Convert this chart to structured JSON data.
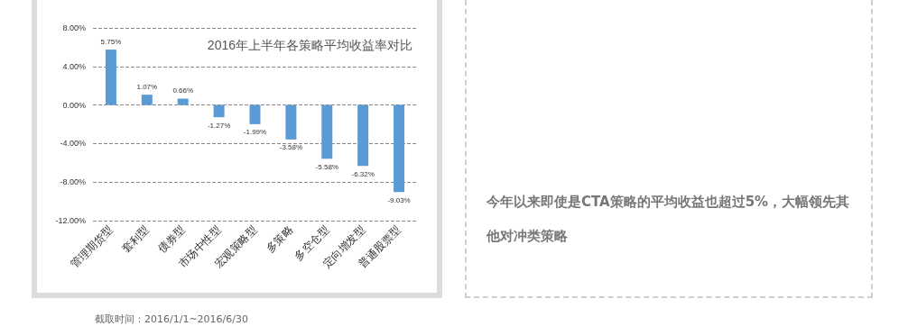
{
  "chart_data": {
    "type": "bar",
    "title": "2016年上半年各策略平均收益率对比",
    "categories": [
      "管理期货型",
      "套利型",
      "债券型",
      "市场中性型",
      "宏观策略型",
      "多策略",
      "多空仓型",
      "定向增发型",
      "普通股票型"
    ],
    "values": [
      5.75,
      1.07,
      0.66,
      -1.27,
      -1.99,
      -3.58,
      -5.58,
      -6.32,
      -9.03
    ],
    "value_labels": [
      "5.75%",
      "1.07%",
      "0.66%",
      "-1.27%",
      "-1.99%",
      "-3.58%",
      "-5.58%",
      "-6.32%",
      "-9.03%"
    ],
    "color": "#5b9bd5",
    "ylim": [
      -12,
      8
    ],
    "yticks": [
      {
        "value": -12,
        "label": "-12.00%"
      },
      {
        "value": -8,
        "label": "-8.00%"
      },
      {
        "value": -4,
        "label": "-4.00%"
      },
      {
        "value": 0,
        "label": "0.00%"
      },
      {
        "value": 4,
        "label": "4.00%"
      },
      {
        "value": 8,
        "label": "8.00%"
      }
    ],
    "grid": "y",
    "annotations": [
      "今年以来即使是CTA策略的平均收益也超过5%，大幅领先其他对冲类策略",
      "截取时间：2016/1/1~2016/6/30"
    ]
  }
}
